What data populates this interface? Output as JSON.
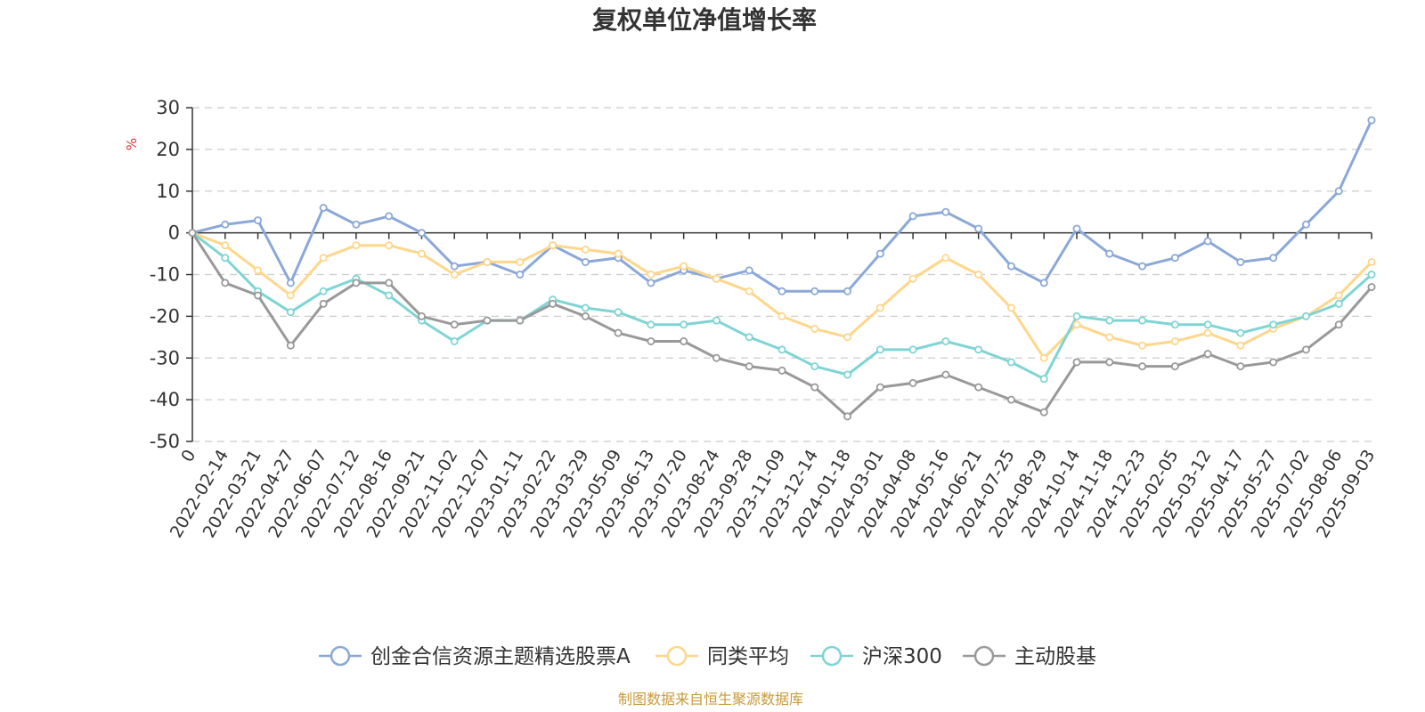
{
  "chart_data": {
    "type": "line",
    "title": "复权单位净值增长率",
    "ylabel": "%",
    "ylim": [
      -50,
      30
    ],
    "yticks": [
      30,
      20,
      10,
      0,
      -10,
      -20,
      -30,
      -40,
      -50
    ],
    "grid": true,
    "legend_position": "bottom",
    "x_tick_labels": [
      "0",
      "2022-02-14",
      "2022-03-21",
      "2022-04-27",
      "2022-06-07",
      "2022-07-12",
      "2022-08-16",
      "2022-09-21",
      "2022-11-02",
      "2022-12-07",
      "2023-01-11",
      "2023-02-22",
      "2023-03-29",
      "2023-05-09",
      "2023-06-13",
      "2023-07-20",
      "2023-08-24",
      "2023-09-28",
      "2023-11-09",
      "2023-12-14",
      "2024-01-18",
      "2024-03-01",
      "2024-04-08",
      "2024-05-16",
      "2024-06-21",
      "2024-07-25",
      "2024-08-29",
      "2024-10-14",
      "2024-11-18",
      "2024-12-23",
      "2025-02-05",
      "2025-03-12",
      "2025-04-17",
      "2025-05-27",
      "2025-07-02",
      "2025-08-06",
      "2025-09-03"
    ],
    "x_index": [
      0,
      1,
      2,
      3,
      4,
      5,
      6,
      7,
      8,
      9,
      10,
      11,
      12,
      13,
      14,
      15,
      16,
      17,
      18,
      19,
      20,
      21,
      22,
      23,
      24,
      25,
      26,
      27,
      28,
      29,
      30,
      31,
      32,
      33,
      34,
      35,
      36
    ],
    "series": [
      {
        "name": "创金合信资源主题精选股票A",
        "color": "#8aa8d8",
        "values": [
          0,
          2,
          3,
          -12,
          6,
          2,
          4,
          0,
          -8,
          -7,
          -10,
          -3,
          -7,
          -6,
          -12,
          -9,
          -11,
          -9,
          -14,
          -14,
          -14,
          -5,
          4,
          5,
          1,
          -8,
          -12,
          1,
          -5,
          -8,
          -6,
          -2,
          -7,
          -6,
          2,
          10,
          27
        ]
      },
      {
        "name": "同类平均",
        "color": "#ffd68a",
        "values": [
          0,
          -3,
          -9,
          -15,
          -6,
          -3,
          -3,
          -5,
          -10,
          -7,
          -7,
          -3,
          -4,
          -5,
          -10,
          -8,
          -11,
          -14,
          -20,
          -23,
          -25,
          -18,
          -11,
          -6,
          -10,
          -18,
          -30,
          -22,
          -25,
          -27,
          -26,
          -24,
          -27,
          -23,
          -20,
          -15,
          -7
        ]
      },
      {
        "name": "沪深300",
        "color": "#7fd4d4",
        "values": [
          0,
          -6,
          -14,
          -19,
          -14,
          -11,
          -15,
          -21,
          -26,
          -21,
          -21,
          -16,
          -18,
          -19,
          -22,
          -22,
          -21,
          -25,
          -28,
          -32,
          -34,
          -28,
          -28,
          -26,
          -28,
          -31,
          -35,
          -20,
          -21,
          -21,
          -22,
          -22,
          -24,
          -22,
          -20,
          -17,
          -10
        ]
      },
      {
        "name": "主动股基",
        "color": "#999999",
        "values": [
          0,
          -12,
          -15,
          -27,
          -17,
          -12,
          -12,
          -20,
          -22,
          -21,
          -21,
          -17,
          -20,
          -24,
          -26,
          -26,
          -30,
          -32,
          -33,
          -37,
          -44,
          -37,
          -36,
          -34,
          -37,
          -40,
          -43,
          -31,
          -31,
          -32,
          -32,
          -29,
          -32,
          -31,
          -28,
          -22,
          -13
        ]
      }
    ]
  },
  "source_text": "制图数据来自恒生聚源数据库"
}
